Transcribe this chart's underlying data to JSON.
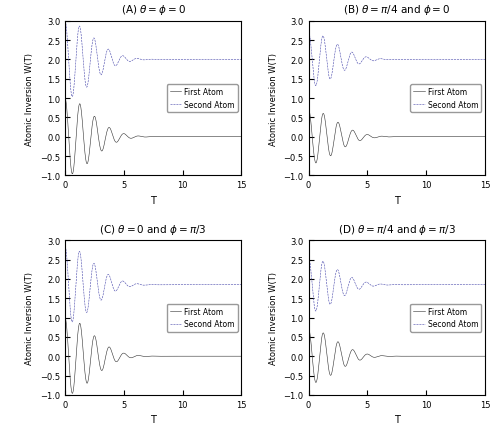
{
  "title_A": "(A) $\\theta = \\phi = 0$",
  "title_B": "(B) $\\theta = \\pi/4$ and $\\phi = 0$",
  "title_C": "(C) $\\theta = 0$ and $\\phi = \\pi/3$",
  "title_D": "(D) $\\theta = \\pi/4$ and $\\phi = \\pi/3$",
  "xlabel": "T",
  "ylabel": "Atomic Inversion W(T)",
  "xlim": [
    0,
    15
  ],
  "ylim": [
    -1,
    3
  ],
  "yticks": [
    -1,
    -0.5,
    0,
    0.5,
    1,
    1.5,
    2,
    2.5,
    3
  ],
  "xticks": [
    0,
    5,
    10,
    15
  ],
  "legend_first": "First Atom",
  "legend_second": "Second Atom",
  "first_atom_color": "#303030",
  "second_atom_color": "#4444aa",
  "alpha_val": 10.0,
  "g0": 0.5,
  "k": 20,
  "delta": 2.0,
  "lambda_val": 2.0,
  "N_max": 120,
  "n_points": 5000,
  "figsize": [
    5.0,
    4.35
  ],
  "dpi": 100
}
